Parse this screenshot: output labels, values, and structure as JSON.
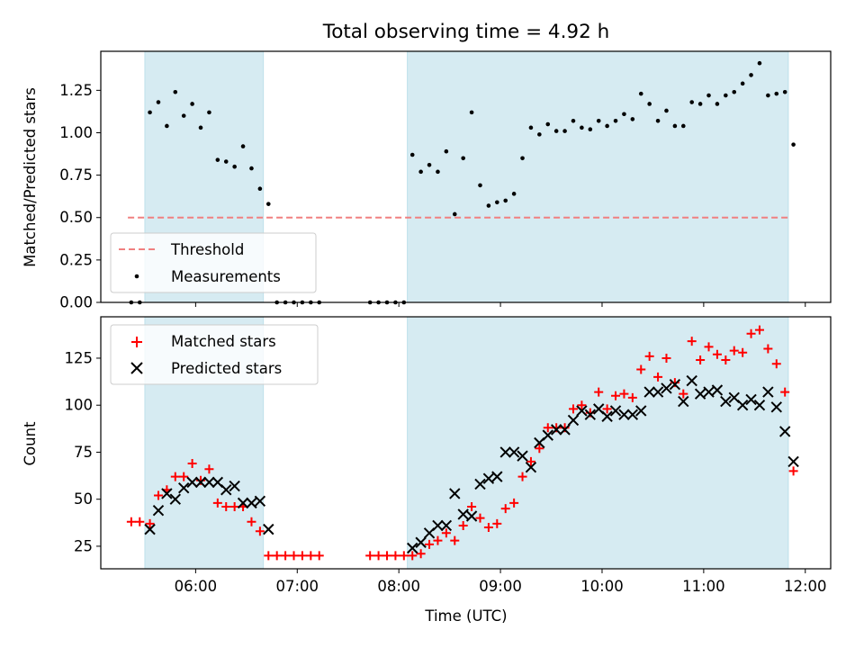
{
  "chart_data": [
    {
      "type": "scatter",
      "title": "Total observing time = 4.92 h",
      "ylabel": "Matched/Predicted stars",
      "xlim": [
        "05:04",
        "12:15"
      ],
      "ylim": [
        0,
        1.48
      ],
      "yticks": [
        "0.00",
        "0.25",
        "0.50",
        "0.75",
        "1.00",
        "1.25"
      ],
      "grid": false,
      "legend_position": "lower-left",
      "shaded_intervals": [
        [
          "05:30",
          "06:40"
        ],
        [
          "08:05",
          "11:50"
        ]
      ],
      "shade_color": "#add8e6",
      "threshold": {
        "name": "Threshold",
        "value": 0.5,
        "x_range": [
          "05:20",
          "11:50"
        ],
        "color": "#f08080",
        "style": "dashed"
      },
      "series": [
        {
          "name": "Measurements",
          "marker": "dot",
          "color": "#000000",
          "points": [
            [
              "05:22",
              0
            ],
            [
              "05:27",
              0
            ],
            [
              "05:33",
              1.12
            ],
            [
              "05:38",
              1.18
            ],
            [
              "05:43",
              1.04
            ],
            [
              "05:48",
              1.24
            ],
            [
              "05:53",
              1.1
            ],
            [
              "05:58",
              1.17
            ],
            [
              "06:03",
              1.03
            ],
            [
              "06:08",
              1.12
            ],
            [
              "06:13",
              0.84
            ],
            [
              "06:18",
              0.83
            ],
            [
              "06:23",
              0.8
            ],
            [
              "06:28",
              0.92
            ],
            [
              "06:33",
              0.79
            ],
            [
              "06:38",
              0.67
            ],
            [
              "06:43",
              0.58
            ],
            [
              "06:48",
              0
            ],
            [
              "06:53",
              0
            ],
            [
              "06:58",
              0
            ],
            [
              "07:03",
              0
            ],
            [
              "07:08",
              0
            ],
            [
              "07:13",
              0
            ],
            [
              "07:43",
              0
            ],
            [
              "07:48",
              0
            ],
            [
              "07:53",
              0
            ],
            [
              "07:58",
              0
            ],
            [
              "08:03",
              0
            ],
            [
              "08:08",
              0.87
            ],
            [
              "08:13",
              0.77
            ],
            [
              "08:18",
              0.81
            ],
            [
              "08:23",
              0.77
            ],
            [
              "08:28",
              0.89
            ],
            [
              "08:33",
              0.52
            ],
            [
              "08:38",
              0.85
            ],
            [
              "08:43",
              1.12
            ],
            [
              "08:48",
              0.69
            ],
            [
              "08:53",
              0.57
            ],
            [
              "08:58",
              0.59
            ],
            [
              "09:03",
              0.6
            ],
            [
              "09:08",
              0.64
            ],
            [
              "09:13",
              0.85
            ],
            [
              "09:18",
              1.03
            ],
            [
              "09:23",
              0.99
            ],
            [
              "09:28",
              1.05
            ],
            [
              "09:33",
              1.01
            ],
            [
              "09:38",
              1.01
            ],
            [
              "09:43",
              1.07
            ],
            [
              "09:48",
              1.03
            ],
            [
              "09:53",
              1.02
            ],
            [
              "09:58",
              1.07
            ],
            [
              "10:03",
              1.04
            ],
            [
              "10:08",
              1.07
            ],
            [
              "10:13",
              1.11
            ],
            [
              "10:18",
              1.08
            ],
            [
              "10:23",
              1.23
            ],
            [
              "10:28",
              1.17
            ],
            [
              "10:33",
              1.07
            ],
            [
              "10:38",
              1.13
            ],
            [
              "10:43",
              1.04
            ],
            [
              "10:48",
              1.04
            ],
            [
              "10:53",
              1.18
            ],
            [
              "10:58",
              1.17
            ],
            [
              "11:03",
              1.22
            ],
            [
              "11:08",
              1.17
            ],
            [
              "11:13",
              1.22
            ],
            [
              "11:18",
              1.24
            ],
            [
              "11:23",
              1.29
            ],
            [
              "11:28",
              1.34
            ],
            [
              "11:33",
              1.41
            ],
            [
              "11:38",
              1.22
            ],
            [
              "11:43",
              1.23
            ],
            [
              "11:48",
              1.24
            ],
            [
              "11:53",
              0.93
            ]
          ]
        }
      ]
    },
    {
      "type": "scatter",
      "xlabel": "Time (UTC)",
      "ylabel": "Count",
      "xlim": [
        "05:04",
        "12:15"
      ],
      "ylim": [
        13,
        147
      ],
      "xticks": [
        "06:00",
        "07:00",
        "08:00",
        "09:00",
        "10:00",
        "11:00",
        "12:00"
      ],
      "yticks": [
        "25",
        "50",
        "75",
        "100",
        "125"
      ],
      "grid": false,
      "legend_position": "top-left",
      "shaded_intervals": [
        [
          "05:30",
          "06:40"
        ],
        [
          "08:05",
          "11:50"
        ]
      ],
      "shade_color": "#add8e6",
      "series": [
        {
          "name": "Matched stars",
          "marker": "plus",
          "color": "#ff0000",
          "points": [
            [
              "05:22",
              38
            ],
            [
              "05:27",
              38
            ],
            [
              "05:33",
              37
            ],
            [
              "05:38",
              52
            ],
            [
              "05:43",
              55
            ],
            [
              "05:48",
              62
            ],
            [
              "05:53",
              62
            ],
            [
              "05:58",
              69
            ],
            [
              "06:03",
              60
            ],
            [
              "06:08",
              66
            ],
            [
              "06:13",
              48
            ],
            [
              "06:18",
              46
            ],
            [
              "06:23",
              46
            ],
            [
              "06:28",
              46
            ],
            [
              "06:33",
              38
            ],
            [
              "06:38",
              33
            ],
            [
              "06:43",
              20
            ],
            [
              "06:48",
              20
            ],
            [
              "06:53",
              20
            ],
            [
              "06:58",
              20
            ],
            [
              "07:03",
              20
            ],
            [
              "07:08",
              20
            ],
            [
              "07:13",
              20
            ],
            [
              "07:43",
              20
            ],
            [
              "07:48",
              20
            ],
            [
              "07:53",
              20
            ],
            [
              "07:58",
              20
            ],
            [
              "08:03",
              20
            ],
            [
              "08:08",
              20
            ],
            [
              "08:13",
              21
            ],
            [
              "08:18",
              26
            ],
            [
              "08:23",
              28
            ],
            [
              "08:28",
              32
            ],
            [
              "08:33",
              28
            ],
            [
              "08:38",
              36
            ],
            [
              "08:43",
              46
            ],
            [
              "08:48",
              40
            ],
            [
              "08:53",
              35
            ],
            [
              "08:58",
              37
            ],
            [
              "09:03",
              45
            ],
            [
              "09:08",
              48
            ],
            [
              "09:13",
              62
            ],
            [
              "09:18",
              70
            ],
            [
              "09:23",
              77
            ],
            [
              "09:28",
              88
            ],
            [
              "09:33",
              88
            ],
            [
              "09:38",
              88
            ],
            [
              "09:43",
              98
            ],
            [
              "09:48",
              100
            ],
            [
              "09:53",
              96
            ],
            [
              "09:58",
              107
            ],
            [
              "10:03",
              98
            ],
            [
              "10:08",
              105
            ],
            [
              "10:13",
              106
            ],
            [
              "10:18",
              104
            ],
            [
              "10:23",
              119
            ],
            [
              "10:28",
              126
            ],
            [
              "10:33",
              115
            ],
            [
              "10:38",
              125
            ],
            [
              "10:43",
              112
            ],
            [
              "10:48",
              106
            ],
            [
              "10:53",
              134
            ],
            [
              "10:58",
              124
            ],
            [
              "11:03",
              131
            ],
            [
              "11:08",
              127
            ],
            [
              "11:13",
              124
            ],
            [
              "11:18",
              129
            ],
            [
              "11:23",
              128
            ],
            [
              "11:28",
              138
            ],
            [
              "11:33",
              140
            ],
            [
              "11:38",
              130
            ],
            [
              "11:43",
              122
            ],
            [
              "11:48",
              107
            ],
            [
              "11:53",
              65
            ]
          ]
        },
        {
          "name": "Predicted stars",
          "marker": "x",
          "color": "#000000",
          "points": [
            [
              "05:33",
              34
            ],
            [
              "05:38",
              44
            ],
            [
              "05:43",
              53
            ],
            [
              "05:48",
              50
            ],
            [
              "05:53",
              56
            ],
            [
              "05:58",
              59
            ],
            [
              "06:03",
              59
            ],
            [
              "06:08",
              59
            ],
            [
              "06:13",
              59
            ],
            [
              "06:18",
              55
            ],
            [
              "06:23",
              57
            ],
            [
              "06:28",
              48
            ],
            [
              "06:33",
              48
            ],
            [
              "06:38",
              49
            ],
            [
              "06:43",
              34
            ],
            [
              "08:08",
              24
            ],
            [
              "08:13",
              27
            ],
            [
              "08:18",
              32
            ],
            [
              "08:23",
              36
            ],
            [
              "08:28",
              36
            ],
            [
              "08:33",
              53
            ],
            [
              "08:38",
              42
            ],
            [
              "08:43",
              41
            ],
            [
              "08:48",
              58
            ],
            [
              "08:53",
              61
            ],
            [
              "08:58",
              62
            ],
            [
              "09:03",
              75
            ],
            [
              "09:08",
              75
            ],
            [
              "09:13",
              73
            ],
            [
              "09:18",
              67
            ],
            [
              "09:23",
              80
            ],
            [
              "09:28",
              84
            ],
            [
              "09:33",
              87
            ],
            [
              "09:38",
              87
            ],
            [
              "09:43",
              92
            ],
            [
              "09:48",
              97
            ],
            [
              "09:53",
              95
            ],
            [
              "09:58",
              98
            ],
            [
              "10:03",
              94
            ],
            [
              "10:08",
              97
            ],
            [
              "10:13",
              95
            ],
            [
              "10:18",
              95
            ],
            [
              "10:23",
              97
            ],
            [
              "10:28",
              107
            ],
            [
              "10:33",
              107
            ],
            [
              "10:38",
              109
            ],
            [
              "10:43",
              111
            ],
            [
              "10:48",
              102
            ],
            [
              "10:53",
              113
            ],
            [
              "10:58",
              106
            ],
            [
              "11:03",
              107
            ],
            [
              "11:08",
              108
            ],
            [
              "11:13",
              102
            ],
            [
              "11:18",
              104
            ],
            [
              "11:23",
              100
            ],
            [
              "11:28",
              103
            ],
            [
              "11:33",
              100
            ],
            [
              "11:38",
              107
            ],
            [
              "11:43",
              99
            ],
            [
              "11:48",
              86
            ],
            [
              "11:53",
              70
            ]
          ]
        }
      ]
    }
  ]
}
